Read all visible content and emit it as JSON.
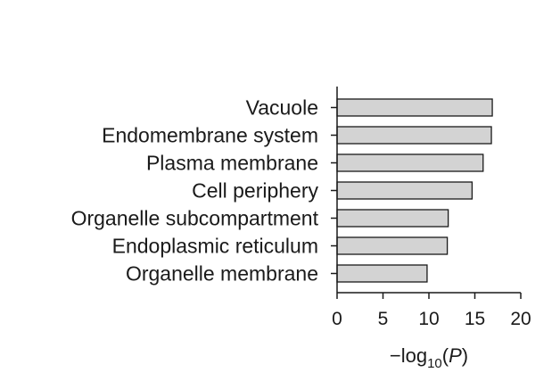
{
  "chart_data": {
    "type": "bar",
    "orientation": "horizontal",
    "categories": [
      "Vacuole",
      "Endomembrane system",
      "Plasma membrane",
      "Cell periphery",
      "Organelle subcompartment",
      "Endoplasmic reticulum",
      "Organelle membrane"
    ],
    "values": [
      16.9,
      16.8,
      15.9,
      14.7,
      12.1,
      12.0,
      9.8
    ],
    "xlabel": {
      "prefix": "−log",
      "sub": "10",
      "open": "(",
      "var": "P",
      "close": ")"
    },
    "xlim": [
      0,
      20
    ],
    "xticks": [
      "0",
      "5",
      "10",
      "15",
      "20"
    ],
    "bar_color": "#d3d3d3",
    "bar_edge_color": "#1a1a1a",
    "grid": false,
    "legend": "none"
  }
}
